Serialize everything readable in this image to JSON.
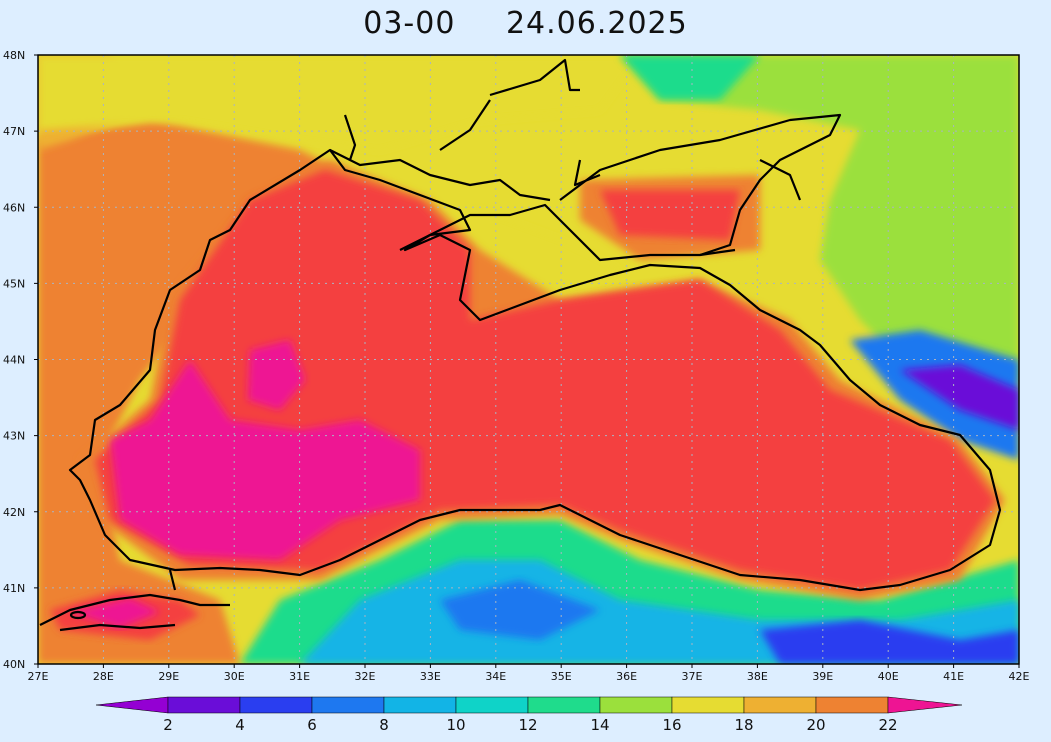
{
  "title": "03-00 24.06.2025",
  "lat_labels": [
    "48N",
    "47N",
    "46N",
    "45N",
    "44N",
    "43N",
    "42N",
    "41N",
    "40N"
  ],
  "lon_labels": [
    "27E",
    "28E",
    "29E",
    "30E",
    "31E",
    "32E",
    "33E",
    "34E",
    "35E",
    "36E",
    "37E",
    "38E",
    "39E",
    "40E",
    "41E",
    "42E"
  ],
  "colorbar": {
    "labels": [
      "2",
      "4",
      "6",
      "8",
      "10",
      "12",
      "14",
      "16",
      "18",
      "20",
      "22"
    ],
    "colors": [
      "#9400d3",
      "#6a0dd8",
      "#2a3ef0",
      "#1e78f0",
      "#12b4e6",
      "#0fd3c8",
      "#1fdc8c",
      "#9be03c",
      "#e6dc32",
      "#eeb032",
      "#ee8232",
      "#f44040",
      "#ee1493"
    ]
  },
  "colors": {
    "background": "#ddeeff",
    "coastline": "#000000",
    "grid": "#a8b4c4"
  }
}
